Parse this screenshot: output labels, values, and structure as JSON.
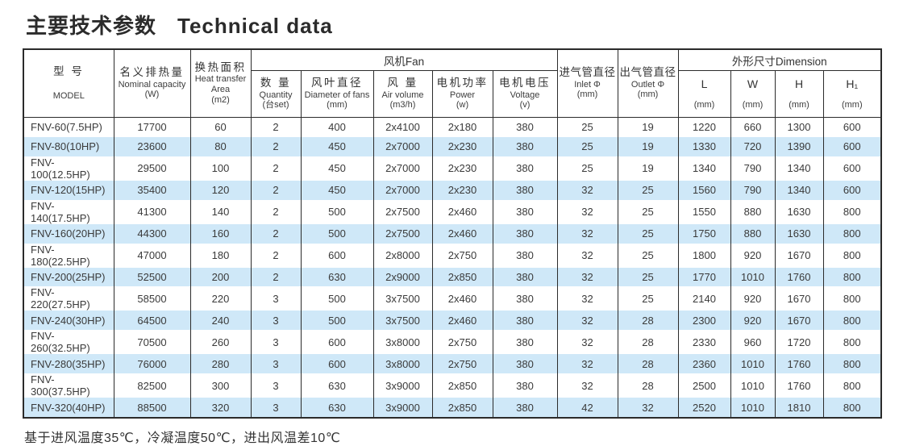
{
  "page": {
    "title_zh": "主要技术参数",
    "title_en": "Technical data",
    "footnote": "基于进风温度35℃，冷凝温度50℃，进出风温差10℃"
  },
  "colors": {
    "stripe_blue": "#cfe8f8",
    "border": "#2b2b2b",
    "text": "#333333",
    "background": "#ffffff"
  },
  "table": {
    "group_headers": {
      "fan": "风机Fan",
      "dimension": "外形尺寸Dimension"
    },
    "header": {
      "model": {
        "zh": "型 号",
        "en": "MODEL"
      },
      "capacity": {
        "zh": "名义排热量",
        "en": "Nominal capacity",
        "unit": "(W)"
      },
      "area": {
        "zh": "换热面积",
        "en": "Heat transfer Area",
        "unit": "(m2)"
      },
      "quantity": {
        "zh": "数 量",
        "en": "Quantity",
        "unit": "(台set)"
      },
      "fan_diameter": {
        "zh": "风叶直径",
        "en": "Diameter of fans",
        "unit": "(mm)"
      },
      "air_volume": {
        "zh": "风 量",
        "en": "Air volume",
        "unit": "(m3/h)"
      },
      "power": {
        "zh": "电机功率",
        "en": "Power",
        "unit": "(w)"
      },
      "voltage": {
        "zh": "电机电压",
        "en": "Voltage",
        "unit": "(v)"
      },
      "inlet": {
        "zh": "进气管直径",
        "en": "Inlet Φ",
        "unit": "(mm)"
      },
      "outlet": {
        "zh": "出气管直径",
        "en": "Outlet Φ",
        "unit": "(mm)"
      },
      "L": {
        "label": "L",
        "unit": "(mm)"
      },
      "W": {
        "label": "W",
        "unit": "(mm)"
      },
      "H": {
        "label": "H",
        "unit": "(mm)"
      },
      "H1": {
        "label": "H₁",
        "unit": "(mm)"
      }
    },
    "column_keys": [
      "model",
      "nominal-capacity",
      "heat-transfer-area",
      "fan-quantity",
      "fan-diameter",
      "air-volume",
      "power",
      "voltage",
      "inlet-diameter",
      "outlet-diameter",
      "dim-L",
      "dim-W",
      "dim-H",
      "dim-H1"
    ],
    "rows": [
      [
        "FNV-60(7.5HP)",
        "17700",
        "60",
        "2",
        "400",
        "2x4100",
        "2x180",
        "380",
        "25",
        "19",
        "1220",
        "660",
        "1300",
        "600"
      ],
      [
        "FNV-80(10HP)",
        "23600",
        "80",
        "2",
        "450",
        "2x7000",
        "2x230",
        "380",
        "25",
        "19",
        "1330",
        "720",
        "1390",
        "600"
      ],
      [
        "FNV-100(12.5HP)",
        "29500",
        "100",
        "2",
        "450",
        "2x7000",
        "2x230",
        "380",
        "25",
        "19",
        "1340",
        "790",
        "1340",
        "600"
      ],
      [
        "FNV-120(15HP)",
        "35400",
        "120",
        "2",
        "450",
        "2x7000",
        "2x230",
        "380",
        "32",
        "25",
        "1560",
        "790",
        "1340",
        "600"
      ],
      [
        "FNV-140(17.5HP)",
        "41300",
        "140",
        "2",
        "500",
        "2x7500",
        "2x460",
        "380",
        "32",
        "25",
        "1550",
        "880",
        "1630",
        "800"
      ],
      [
        "FNV-160(20HP)",
        "44300",
        "160",
        "2",
        "500",
        "2x7500",
        "2x460",
        "380",
        "32",
        "25",
        "1750",
        "880",
        "1630",
        "800"
      ],
      [
        "FNV-180(22.5HP)",
        "47000",
        "180",
        "2",
        "600",
        "2x8000",
        "2x750",
        "380",
        "32",
        "25",
        "1800",
        "920",
        "1670",
        "800"
      ],
      [
        "FNV-200(25HP)",
        "52500",
        "200",
        "2",
        "630",
        "2x9000",
        "2x850",
        "380",
        "32",
        "25",
        "1770",
        "1010",
        "1760",
        "800"
      ],
      [
        "FNV-220(27.5HP)",
        "58500",
        "220",
        "3",
        "500",
        "3x7500",
        "2x460",
        "380",
        "32",
        "25",
        "2140",
        "920",
        "1670",
        "800"
      ],
      [
        "FNV-240(30HP)",
        "64500",
        "240",
        "3",
        "500",
        "3x7500",
        "2x460",
        "380",
        "32",
        "28",
        "2300",
        "920",
        "1670",
        "800"
      ],
      [
        "FNV-260(32.5HP)",
        "70500",
        "260",
        "3",
        "600",
        "3x8000",
        "2x750",
        "380",
        "32",
        "28",
        "2330",
        "960",
        "1720",
        "800"
      ],
      [
        "FNV-280(35HP)",
        "76000",
        "280",
        "3",
        "600",
        "3x8000",
        "2x750",
        "380",
        "32",
        "28",
        "2360",
        "1010",
        "1760",
        "800"
      ],
      [
        "FNV-300(37.5HP)",
        "82500",
        "300",
        "3",
        "630",
        "3x9000",
        "2x850",
        "380",
        "32",
        "28",
        "2500",
        "1010",
        "1760",
        "800"
      ],
      [
        "FNV-320(40HP)",
        "88500",
        "320",
        "3",
        "630",
        "3x9000",
        "2x850",
        "380",
        "42",
        "32",
        "2520",
        "1010",
        "1810",
        "800"
      ]
    ]
  }
}
